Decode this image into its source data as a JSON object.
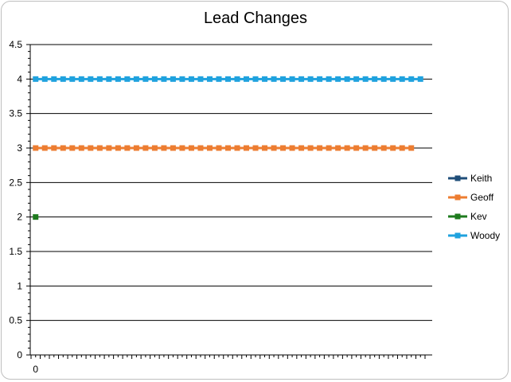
{
  "chart_data": {
    "type": "line",
    "title": "Lead Changes",
    "xlabel": "",
    "ylabel": "",
    "ylim": [
      0,
      4.5
    ],
    "y_ticks": [
      "0",
      "0.5",
      "1",
      "1.5",
      "2",
      "2.5",
      "3",
      "3.5",
      "4",
      "4.5"
    ],
    "x_tick_labels": [
      "0"
    ],
    "x_count": 43,
    "grid": true,
    "legend_position": "right",
    "series": [
      {
        "name": "Keith",
        "color": "#1f4e79",
        "start": 0,
        "count": 0,
        "value": 1
      },
      {
        "name": "Geoff",
        "color": "#ed7d31",
        "start": 0,
        "count": 42,
        "value": 3
      },
      {
        "name": "Kev",
        "color": "#1e7b1e",
        "start": 0,
        "count": 1,
        "value": 2
      },
      {
        "name": "Woody",
        "color": "#1fa2de",
        "start": 0,
        "count": 43,
        "value": 4
      }
    ]
  }
}
